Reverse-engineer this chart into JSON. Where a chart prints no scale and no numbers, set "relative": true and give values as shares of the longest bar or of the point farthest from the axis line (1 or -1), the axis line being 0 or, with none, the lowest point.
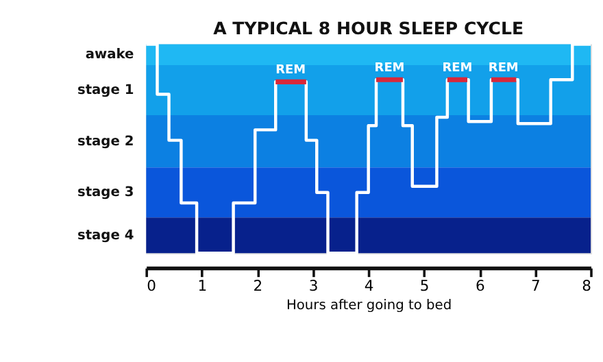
{
  "chart_data": {
    "type": "step",
    "title": "A TYPICAL 8 HOUR SLEEP CYCLE",
    "xlabel": "Hours after going to bed",
    "xlim": [
      0,
      8
    ],
    "xticks": [
      0,
      1,
      2,
      3,
      4,
      5,
      6,
      7,
      8
    ],
    "relative": true,
    "series": [
      {
        "color": "#ffffff",
        "x": [
          0,
          0.2,
          0.41,
          0.63,
          0.91,
          1.57,
          1.96,
          2.33,
          2.88,
          3.07,
          3.27,
          3.79,
          4.0,
          4.14,
          4.62,
          4.79,
          5.23,
          5.42,
          5.8,
          6.21,
          6.69,
          7.28,
          7.67,
          8
        ],
        "values": [
          1.0,
          0.76,
          0.54,
          0.24,
          0,
          0.24,
          0.59,
          0.82,
          0.54,
          0.29,
          0,
          0.29,
          0.61,
          0.83,
          0.61,
          0.32,
          0.65,
          0.83,
          0.63,
          0.83,
          0.62,
          0.83,
          1.0,
          1.0
        ]
      },
      {
        "type": "line",
        "color": "#d8283a",
        "x": [
          2.33,
          2.88,
          3.5,
          4.14,
          4.62,
          5.0,
          5.42,
          5.78,
          6.0,
          6.21,
          6.66
        ],
        "values": [
          0.82,
          0.82,
          null,
          0.83,
          0.83,
          null,
          0.83,
          0.83,
          null,
          0.83,
          0.83
        ]
      }
    ],
    "bands": [
      {
        "axis": "y",
        "from": 0.9,
        "to": 1.0,
        "color": "#1fb8f3"
      },
      {
        "axis": "y",
        "from": 0.66,
        "to": 0.9,
        "color": "#12a0ea"
      },
      {
        "axis": "y",
        "from": 0.41,
        "to": 0.66,
        "color": "#0c80e2"
      },
      {
        "axis": "y",
        "from": 0.17,
        "to": 0.41,
        "color": "#0a56db"
      },
      {
        "axis": "y",
        "from": 0,
        "to": 0.17,
        "color": "#07218c"
      }
    ],
    "annotations": [
      "awake",
      "stage 1",
      "stage 2",
      "stage 3",
      "stage 4",
      {
        "text": "REM",
        "x": 2.6,
        "y": 0.82
      },
      {
        "text": "REM",
        "x": 4.38,
        "y": 0.83
      },
      {
        "text": "REM",
        "x": 5.6,
        "y": 0.83
      },
      {
        "text": "REM",
        "x": 6.43,
        "y": 0.83
      }
    ]
  }
}
